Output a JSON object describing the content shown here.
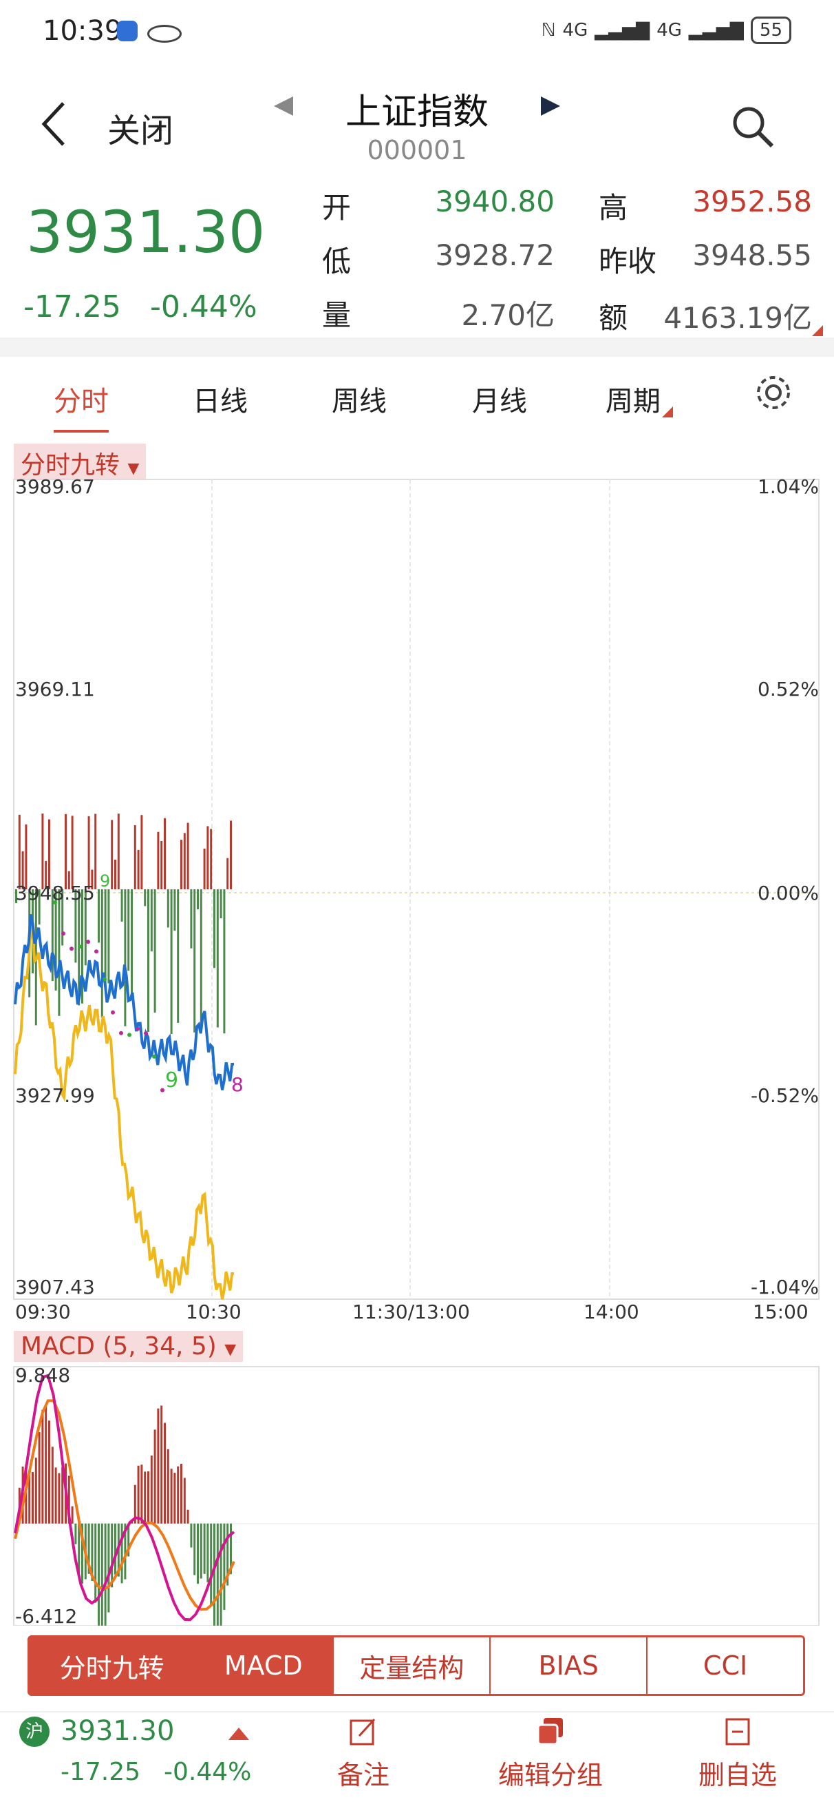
{
  "status": {
    "time": "10:39",
    "net1": "4G",
    "net2": "4G",
    "battery": "55"
  },
  "header": {
    "close_label": "关闭",
    "title": "上证指数",
    "code": "000001"
  },
  "quote": {
    "price": "3931.30",
    "change": "-17.25",
    "change_pct": "-0.44%",
    "open_label": "开",
    "open": "3940.80",
    "high_label": "高",
    "high": "3952.58",
    "low_label": "低",
    "low": "3928.72",
    "prev_close_label": "昨收",
    "prev_close": "3948.55",
    "volume_label": "量",
    "volume": "2.70亿",
    "amount_label": "额",
    "amount": "4163.19亿"
  },
  "tabs": [
    "分时",
    "日线",
    "周线",
    "月线",
    "周期"
  ],
  "main_chart": {
    "indicator_label": "分时九转",
    "y_left": [
      "3989.67",
      "3969.11",
      "3948.55",
      "3927.99",
      "3907.43"
    ],
    "y_right": [
      "1.04%",
      "0.52%",
      "0.00%",
      "-0.52%",
      "-1.04%"
    ],
    "x_labels": [
      "09:30",
      "10:30",
      "11:30/13:00",
      "14:00",
      "15:00"
    ],
    "marker_9_top": "9",
    "marker_9_bottom": "9",
    "marker_8": "8"
  },
  "macd": {
    "label": "MACD (5, 34, 5)",
    "top": "9.848",
    "bottom": "-6.412"
  },
  "bottom_tabs": [
    "分时九转",
    "MACD",
    "定量结构",
    "BIAS",
    "CCI"
  ],
  "footer": {
    "exchange": "沪",
    "price": "3931.30",
    "change": "-17.25",
    "change_pct": "-0.44%",
    "note_label": "备注",
    "group_label": "编辑分组",
    "remove_label": "删自选"
  },
  "chart_data": {
    "type": "line",
    "x": [
      "09:30",
      "09:35",
      "09:40",
      "09:45",
      "09:50",
      "09:55",
      "10:00",
      "10:05",
      "10:10",
      "10:15",
      "10:20",
      "10:25",
      "10:30",
      "10:35",
      "10:39"
    ],
    "series": [
      {
        "values": [
          3937,
          3945,
          3942,
          3940,
          3938,
          3941,
          3938,
          3940,
          3934,
          3932,
          3933,
          3930,
          3936,
          3929,
          3931
        ]
      },
      {
        "values": [
          3930,
          3944,
          3938,
          3928,
          3935,
          3936,
          3934,
          3920,
          3915,
          3911,
          3909,
          3911,
          3918,
          3908,
          3910
        ]
      }
    ],
    "ylim": [
      3907.43,
      3989.67
    ],
    "grid": true
  }
}
